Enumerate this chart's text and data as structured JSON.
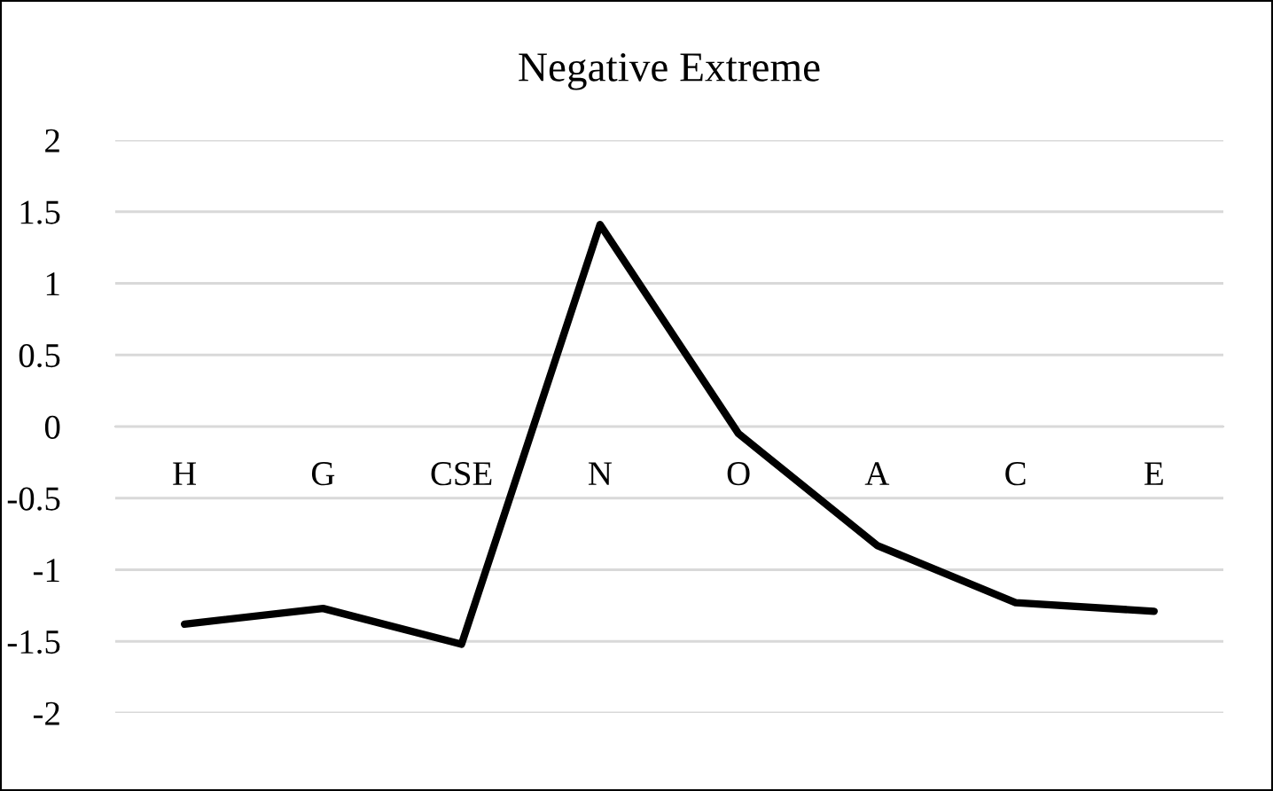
{
  "chart_data": {
    "type": "line",
    "title": "Negative Extreme",
    "categories": [
      "H",
      "G",
      "CSE",
      "N",
      "O",
      "A",
      "C",
      "E"
    ],
    "series": [
      {
        "color": "#000000",
        "values": [
          -1.38,
          -1.27,
          -1.52,
          1.41,
          -0.05,
          -0.83,
          -1.23,
          -1.29
        ]
      }
    ],
    "ylim": [
      -2,
      2
    ],
    "yticks": [
      -2,
      -1.5,
      -1,
      -0.5,
      0,
      0.5,
      1,
      1.5,
      2
    ],
    "grid": "y",
    "marker": "none",
    "line_style": "solid"
  }
}
